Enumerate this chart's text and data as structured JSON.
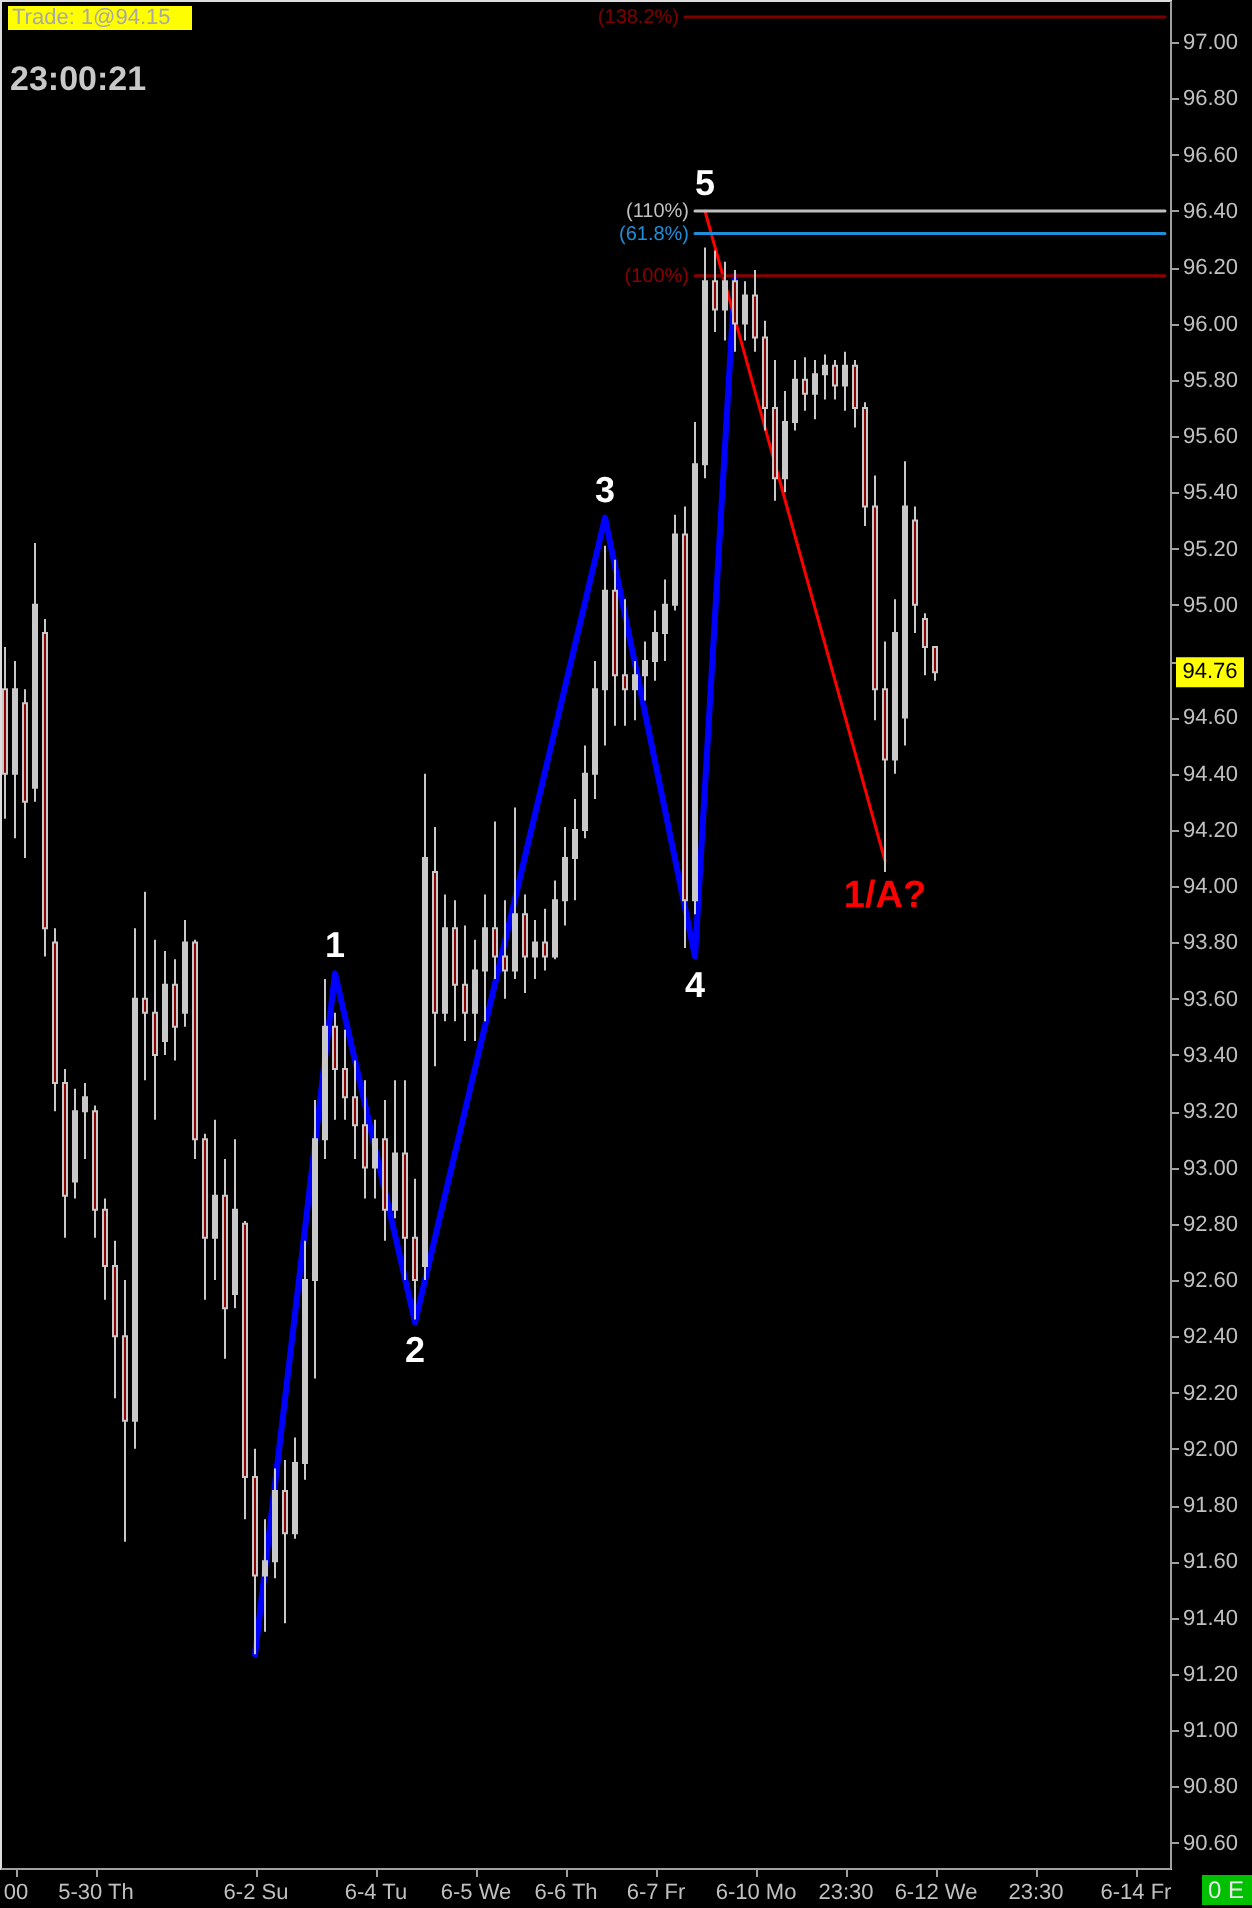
{
  "chart_data": {
    "type": "candlestick",
    "title": "Trade: 1@94.15",
    "subtitle": "23:00:21",
    "color": "#c8c8c8",
    "ylim": [
      90.51,
      97.15
    ],
    "yticks": [
      {
        "value": 90.6,
        "label": "90.60"
      },
      {
        "value": 90.8,
        "label": "90.80"
      },
      {
        "value": 91.0,
        "label": "91.00"
      },
      {
        "value": 91.2,
        "label": "91.20"
      },
      {
        "value": 91.4,
        "label": "91.40"
      },
      {
        "value": 91.6,
        "label": "91.60"
      },
      {
        "value": 91.8,
        "label": "91.80"
      },
      {
        "value": 92.0,
        "label": "92.00"
      },
      {
        "value": 92.2,
        "label": "92.20"
      },
      {
        "value": 92.4,
        "label": "92.40"
      },
      {
        "value": 92.6,
        "label": "92.60"
      },
      {
        "value": 92.8,
        "label": "92.80"
      },
      {
        "value": 93.0,
        "label": "93.00"
      },
      {
        "value": 93.2,
        "label": "93.20"
      },
      {
        "value": 93.4,
        "label": "93.40"
      },
      {
        "value": 93.6,
        "label": "93.60"
      },
      {
        "value": 93.8,
        "label": "93.80"
      },
      {
        "value": 94.0,
        "label": "94.00"
      },
      {
        "value": 94.2,
        "label": "94.20"
      },
      {
        "value": 94.4,
        "label": "94.40"
      },
      {
        "value": 94.6,
        "label": "94.60"
      },
      {
        "value": 94.8,
        "label": null
      },
      {
        "value": 95.0,
        "label": "95.00"
      },
      {
        "value": 95.2,
        "label": "95.20"
      },
      {
        "value": 95.4,
        "label": "95.40"
      },
      {
        "value": 95.6,
        "label": "95.60"
      },
      {
        "value": 95.8,
        "label": "95.80"
      },
      {
        "value": 96.0,
        "label": "96.00"
      },
      {
        "value": 96.2,
        "label": "96.20"
      },
      {
        "value": 96.4,
        "label": "96.40"
      },
      {
        "value": 96.6,
        "label": "96.60"
      },
      {
        "value": 96.8,
        "label": "96.80"
      },
      {
        "value": 97.0,
        "label": "97.00"
      }
    ],
    "categories": [
      null,
      "00",
      null,
      null,
      null,
      null,
      null,
      null,
      null,
      "5-30 Th",
      null,
      null,
      null,
      null,
      null,
      null,
      null,
      null,
      null,
      null,
      null,
      null,
      null,
      null,
      null,
      "6-2 Su",
      null,
      null,
      null,
      null,
      null,
      null,
      null,
      null,
      null,
      null,
      null,
      "6-4 Tu",
      null,
      null,
      null,
      null,
      null,
      null,
      null,
      null,
      null,
      "6-5 We",
      null,
      null,
      null,
      null,
      null,
      null,
      null,
      null,
      "6-6 Th",
      null,
      null,
      null,
      null,
      null,
      null,
      null,
      null,
      "6-7 Fr",
      null,
      null,
      null,
      null,
      null,
      null,
      null,
      null,
      null,
      "6-10 Mo",
      null,
      null,
      null,
      null,
      null,
      null,
      null,
      null,
      "23:30",
      null,
      null,
      null,
      null,
      null,
      null,
      null,
      null,
      "6-12 We",
      null,
      null,
      null,
      null,
      null,
      null,
      null,
      null,
      null,
      "23:30",
      null,
      null,
      null,
      null,
      null,
      null,
      null,
      null,
      null,
      "6-14 Fr",
      null,
      null,
      null
    ],
    "ohlc": [
      [
        94.7,
        94.85,
        94.24,
        94.4
      ],
      [
        94.4,
        94.8,
        94.17,
        94.7
      ],
      [
        94.65,
        94.7,
        94.1,
        94.3
      ],
      [
        94.35,
        95.22,
        94.3,
        95.0
      ],
      [
        94.9,
        94.95,
        93.75,
        93.85
      ],
      [
        93.8,
        93.85,
        93.2,
        93.3
      ],
      [
        93.3,
        93.35,
        92.75,
        92.9
      ],
      [
        92.95,
        93.28,
        92.89,
        93.2
      ],
      [
        93.2,
        93.3,
        93.03,
        93.25
      ],
      [
        93.2,
        93.22,
        92.75,
        92.85
      ],
      [
        92.85,
        92.89,
        92.53,
        92.65
      ],
      [
        92.65,
        92.74,
        92.18,
        92.4
      ],
      [
        92.4,
        92.6,
        91.67,
        92.1
      ],
      [
        92.1,
        93.85,
        92.0,
        93.6
      ],
      [
        93.6,
        93.98,
        93.31,
        93.55
      ],
      [
        93.55,
        93.81,
        93.17,
        93.4
      ],
      [
        93.45,
        93.77,
        93.4,
        93.65
      ],
      [
        93.65,
        93.74,
        93.38,
        93.5
      ],
      [
        93.55,
        93.88,
        93.5,
        93.8
      ],
      [
        93.8,
        93.81,
        93.03,
        93.1
      ],
      [
        93.1,
        93.12,
        92.53,
        92.75
      ],
      [
        92.75,
        93.17,
        92.6,
        92.9
      ],
      [
        92.9,
        93.03,
        92.32,
        92.5
      ],
      [
        92.55,
        93.1,
        92.5,
        92.85
      ],
      [
        92.8,
        92.81,
        91.75,
        91.9
      ],
      [
        91.9,
        92.0,
        91.27,
        91.55
      ],
      [
        91.55,
        91.75,
        91.35,
        91.6
      ],
      [
        91.6,
        91.93,
        91.54,
        91.85
      ],
      [
        91.85,
        91.96,
        91.38,
        91.7
      ],
      [
        91.7,
        92.04,
        91.68,
        91.95
      ],
      [
        91.95,
        92.74,
        91.89,
        92.6
      ],
      [
        92.6,
        93.24,
        92.25,
        93.1
      ],
      [
        93.1,
        93.67,
        93.03,
        93.5
      ],
      [
        93.5,
        93.55,
        93.17,
        93.35
      ],
      [
        93.35,
        93.49,
        93.17,
        93.25
      ],
      [
        93.25,
        93.38,
        93.03,
        93.15
      ],
      [
        93.15,
        93.31,
        92.89,
        93.0
      ],
      [
        93.0,
        93.17,
        92.89,
        93.1
      ],
      [
        93.1,
        93.24,
        92.74,
        92.85
      ],
      [
        92.85,
        93.31,
        92.82,
        93.05
      ],
      [
        93.05,
        93.31,
        92.6,
        92.75
      ],
      [
        92.75,
        92.96,
        92.46,
        92.6
      ],
      [
        92.65,
        94.4,
        92.6,
        94.1
      ],
      [
        94.05,
        94.21,
        93.36,
        93.55
      ],
      [
        93.55,
        93.97,
        93.52,
        93.85
      ],
      [
        93.85,
        93.95,
        93.52,
        93.65
      ],
      [
        93.65,
        93.86,
        93.45,
        93.55
      ],
      [
        93.55,
        93.81,
        93.45,
        93.7
      ],
      [
        93.7,
        93.97,
        93.52,
        93.85
      ],
      [
        93.85,
        94.23,
        93.67,
        93.75
      ],
      [
        93.75,
        93.95,
        93.6,
        93.7
      ],
      [
        93.7,
        94.28,
        93.67,
        93.9
      ],
      [
        93.9,
        93.97,
        93.62,
        93.75
      ],
      [
        93.75,
        93.88,
        93.67,
        93.8
      ],
      [
        93.8,
        93.92,
        93.7,
        93.75
      ],
      [
        93.75,
        94.02,
        93.74,
        93.95
      ],
      [
        93.95,
        94.21,
        93.86,
        94.1
      ],
      [
        94.1,
        94.31,
        93.95,
        94.2
      ],
      [
        94.2,
        94.5,
        94.17,
        94.4
      ],
      [
        94.4,
        94.8,
        94.31,
        94.7
      ],
      [
        94.7,
        95.21,
        94.5,
        95.05
      ],
      [
        95.05,
        95.16,
        94.57,
        94.75
      ],
      [
        94.75,
        95.02,
        94.57,
        94.7
      ],
      [
        94.7,
        94.8,
        94.59,
        94.75
      ],
      [
        94.75,
        94.87,
        94.66,
        94.8
      ],
      [
        94.8,
        94.98,
        94.73,
        94.9
      ],
      [
        94.9,
        95.09,
        94.8,
        95.0
      ],
      [
        95.0,
        95.32,
        94.98,
        95.25
      ],
      [
        95.25,
        95.35,
        93.78,
        93.95
      ],
      [
        93.95,
        95.65,
        93.9,
        95.5
      ],
      [
        95.5,
        96.27,
        95.45,
        96.15
      ],
      [
        96.15,
        96.26,
        95.97,
        96.05
      ],
      [
        96.05,
        96.22,
        95.94,
        96.15
      ],
      [
        96.15,
        96.19,
        95.9,
        96.0
      ],
      [
        96.0,
        96.15,
        95.94,
        96.1
      ],
      [
        96.1,
        96.19,
        95.9,
        95.95
      ],
      [
        95.95,
        96.01,
        95.62,
        95.7
      ],
      [
        95.7,
        95.87,
        95.37,
        95.45
      ],
      [
        95.45,
        95.76,
        95.4,
        95.65
      ],
      [
        95.65,
        95.87,
        95.62,
        95.8
      ],
      [
        95.8,
        95.88,
        95.69,
        95.75
      ],
      [
        95.75,
        95.87,
        95.66,
        95.82
      ],
      [
        95.82,
        95.89,
        95.73,
        95.85
      ],
      [
        95.85,
        95.87,
        95.73,
        95.78
      ],
      [
        95.78,
        95.9,
        95.69,
        95.85
      ],
      [
        95.85,
        95.87,
        95.63,
        95.7
      ],
      [
        95.7,
        95.72,
        95.28,
        95.35
      ],
      [
        95.35,
        95.46,
        94.59,
        94.7
      ],
      [
        94.7,
        94.87,
        94.05,
        94.45
      ],
      [
        94.45,
        95.02,
        94.4,
        94.9
      ],
      [
        94.6,
        95.51,
        94.5,
        95.35
      ],
      [
        95.3,
        95.35,
        94.9,
        95.0
      ],
      [
        94.95,
        94.97,
        94.75,
        94.85
      ],
      [
        94.85,
        94.85,
        94.73,
        94.76
      ],
      null,
      null,
      null,
      null,
      null,
      null,
      null,
      null,
      null,
      null,
      null,
      null,
      null,
      null,
      null,
      null,
      null,
      null,
      null,
      null,
      null,
      null,
      null
    ],
    "colors": [
      "#8b0000",
      "#c8c8c8",
      "#8b0000",
      "#c8c8c8",
      "#8b0000",
      "#8b0000",
      "#8b0000",
      "#c8c8c8",
      "#c8c8c8",
      "#8b0000",
      "#8b0000",
      "#8b0000",
      "#8b0000",
      "#c8c8c8",
      "#8b0000",
      "#8b0000",
      "#c8c8c8",
      "#8b0000",
      "#c8c8c8",
      "#8b0000",
      "#8b0000",
      "#c8c8c8",
      "#8b0000",
      "#c8c8c8",
      "#8b0000",
      "#8b0000",
      "#c8c8c8",
      "#c8c8c8",
      "#8b0000",
      "#c8c8c8",
      "#c8c8c8",
      "#c8c8c8",
      "#c8c8c8",
      "#8b0000",
      "#8b0000",
      "#8b0000",
      "#8b0000",
      "#c8c8c8",
      "#8b0000",
      "#c8c8c8",
      "#8b0000",
      "#8b0000",
      "#c8c8c8",
      "#8b0000",
      "#c8c8c8",
      "#8b0000",
      "#8b0000",
      "#c8c8c8",
      "#c8c8c8",
      "#8b0000",
      "#8b0000",
      "#c8c8c8",
      "#8b0000",
      "#c8c8c8",
      "#8b0000",
      "#c8c8c8",
      "#c8c8c8",
      "#c8c8c8",
      "#c8c8c8",
      "#c8c8c8",
      "#c8c8c8",
      "#8b0000",
      "#8b0000",
      "#c8c8c8",
      "#c8c8c8",
      "#c8c8c8",
      "#c8c8c8",
      "#c8c8c8",
      "#8b0000",
      "#c8c8c8",
      "#c8c8c8",
      "#8b0000",
      "#c8c8c8",
      "#8b0000",
      "#c8c8c8",
      "#8b0000",
      "#8b0000",
      "#8b0000",
      "#c8c8c8",
      "#c8c8c8",
      "#8b0000",
      "#c8c8c8",
      "#c8c8c8",
      "#8b0000",
      "#c8c8c8",
      "#8b0000",
      "#8b0000",
      "#8b0000",
      "#8b0000",
      "#c8c8c8",
      "#c8c8c8",
      "#8b0000",
      "#8b0000",
      "#8b0000",
      null,
      null,
      null,
      null,
      null,
      null,
      null,
      null,
      null,
      null,
      null,
      null,
      null,
      null,
      null,
      null,
      null,
      null,
      null,
      null,
      null,
      null,
      null
    ],
    "series": [
      {
        "type": "line",
        "color": "#0000ff",
        "values": [
          null,
          null,
          null,
          null,
          null,
          null,
          null,
          null,
          null,
          null,
          null,
          null,
          null,
          null,
          null,
          null,
          null,
          null,
          null,
          null,
          null,
          null,
          null,
          null,
          null,
          91.27,
          null,
          null,
          null,
          null,
          null,
          null,
          null,
          93.69,
          null,
          null,
          null,
          null,
          null,
          null,
          null,
          92.45,
          null,
          null,
          null,
          null,
          null,
          null,
          null,
          null,
          null,
          null,
          null,
          null,
          null,
          null,
          null,
          null,
          null,
          null,
          95.31,
          null,
          null,
          null,
          null,
          null,
          null,
          null,
          null,
          93.75,
          null,
          null,
          null,
          96.17,
          null,
          null,
          null,
          null,
          null,
          null,
          null,
          null,
          null,
          null,
          null,
          null,
          null,
          null,
          null,
          null,
          null,
          null,
          null,
          null,
          null,
          null,
          null,
          null,
          null,
          null,
          null,
          null,
          null,
          null,
          null,
          null,
          null,
          null,
          null,
          null,
          null,
          null,
          null,
          null,
          null,
          null,
          null
        ]
      },
      {
        "type": "line",
        "name": "1/A?",
        "color": "#ff0000",
        "values": [
          null,
          null,
          null,
          null,
          null,
          null,
          null,
          null,
          null,
          null,
          null,
          null,
          null,
          null,
          null,
          null,
          null,
          null,
          null,
          null,
          null,
          null,
          null,
          null,
          null,
          null,
          null,
          null,
          null,
          null,
          null,
          null,
          null,
          null,
          null,
          null,
          null,
          null,
          null,
          null,
          null,
          null,
          null,
          null,
          null,
          null,
          null,
          null,
          null,
          null,
          null,
          null,
          null,
          null,
          null,
          null,
          null,
          null,
          null,
          null,
          null,
          null,
          null,
          null,
          null,
          null,
          null,
          null,
          null,
          null,
          96.4,
          null,
          null,
          null,
          null,
          null,
          null,
          null,
          null,
          null,
          null,
          null,
          null,
          null,
          null,
          null,
          null,
          null,
          94.09,
          null,
          null,
          null,
          null,
          null,
          null,
          null,
          null,
          null,
          null,
          null,
          null,
          null,
          null,
          null,
          null,
          null,
          null,
          null,
          null,
          null,
          null,
          null,
          null,
          null,
          null,
          null,
          null
        ]
      },
      {
        "type": "line",
        "name": "(138.2%)",
        "color": "#800000",
        "values": [
          null,
          null,
          null,
          null,
          null,
          null,
          null,
          null,
          null,
          null,
          null,
          null,
          null,
          null,
          null,
          null,
          null,
          null,
          null,
          null,
          null,
          null,
          null,
          null,
          null,
          null,
          null,
          null,
          null,
          null,
          null,
          null,
          null,
          null,
          null,
          null,
          null,
          null,
          null,
          null,
          null,
          null,
          null,
          null,
          null,
          null,
          null,
          null,
          null,
          null,
          null,
          null,
          null,
          null,
          null,
          null,
          null,
          null,
          null,
          null,
          null,
          null,
          null,
          null,
          null,
          null,
          null,
          null,
          97.09,
          97.09,
          97.09,
          97.09,
          97.09,
          97.09,
          97.09,
          97.09,
          97.09,
          97.09,
          97.09,
          97.09,
          97.09,
          97.09,
          97.09,
          97.09,
          97.09,
          97.09,
          97.09,
          97.09,
          97.09,
          97.09,
          97.09,
          97.09,
          97.09,
          97.09,
          97.09,
          97.09,
          97.09,
          97.09,
          97.09,
          97.09,
          97.09,
          97.09,
          97.09,
          97.09,
          97.09,
          97.09,
          97.09,
          97.09,
          97.09,
          97.09,
          97.09,
          97.09,
          97.09,
          97.09,
          97.09,
          97.09,
          97.09
        ]
      },
      {
        "type": "line",
        "name": "(110%)",
        "color": "#c0c0c0",
        "values": [
          null,
          null,
          null,
          null,
          null,
          null,
          null,
          null,
          null,
          null,
          null,
          null,
          null,
          null,
          null,
          null,
          null,
          null,
          null,
          null,
          null,
          null,
          null,
          null,
          null,
          null,
          null,
          null,
          null,
          null,
          null,
          null,
          null,
          null,
          null,
          null,
          null,
          null,
          null,
          null,
          null,
          null,
          null,
          null,
          null,
          null,
          null,
          null,
          null,
          null,
          null,
          null,
          null,
          null,
          null,
          null,
          null,
          null,
          null,
          null,
          null,
          null,
          null,
          null,
          null,
          null,
          null,
          null,
          null,
          96.4,
          96.4,
          96.4,
          96.4,
          96.4,
          96.4,
          96.4,
          96.4,
          96.4,
          96.4,
          96.4,
          96.4,
          96.4,
          96.4,
          96.4,
          96.4,
          96.4,
          96.4,
          96.4,
          96.4,
          96.4,
          96.4,
          96.4,
          96.4,
          96.4,
          96.4,
          96.4,
          96.4,
          96.4,
          96.4,
          96.4,
          96.4,
          96.4,
          96.4,
          96.4,
          96.4,
          96.4,
          96.4,
          96.4,
          96.4,
          96.4,
          96.4,
          96.4,
          96.4,
          96.4,
          96.4,
          96.4,
          96.4
        ]
      },
      {
        "type": "line",
        "name": "(61.8%)",
        "color": "#1e8fd8",
        "values": [
          null,
          null,
          null,
          null,
          null,
          null,
          null,
          null,
          null,
          null,
          null,
          null,
          null,
          null,
          null,
          null,
          null,
          null,
          null,
          null,
          null,
          null,
          null,
          null,
          null,
          null,
          null,
          null,
          null,
          null,
          null,
          null,
          null,
          null,
          null,
          null,
          null,
          null,
          null,
          null,
          null,
          null,
          null,
          null,
          null,
          null,
          null,
          null,
          null,
          null,
          null,
          null,
          null,
          null,
          null,
          null,
          null,
          null,
          null,
          null,
          null,
          null,
          null,
          null,
          null,
          null,
          null,
          null,
          null,
          96.32,
          96.32,
          96.32,
          96.32,
          96.32,
          96.32,
          96.32,
          96.32,
          96.32,
          96.32,
          96.32,
          96.32,
          96.32,
          96.32,
          96.32,
          96.32,
          96.32,
          96.32,
          96.32,
          96.32,
          96.32,
          96.32,
          96.32,
          96.32,
          96.32,
          96.32,
          96.32,
          96.32,
          96.32,
          96.32,
          96.32,
          96.32,
          96.32,
          96.32,
          96.32,
          96.32,
          96.32,
          96.32,
          96.32,
          96.32,
          96.32,
          96.32,
          96.32,
          96.32,
          96.32,
          96.32,
          96.32,
          96.32
        ]
      },
      {
        "type": "line",
        "name": "(100%)",
        "color": "#8b0000",
        "values": [
          null,
          null,
          null,
          null,
          null,
          null,
          null,
          null,
          null,
          null,
          null,
          null,
          null,
          null,
          null,
          null,
          null,
          null,
          null,
          null,
          null,
          null,
          null,
          null,
          null,
          null,
          null,
          null,
          null,
          null,
          null,
          null,
          null,
          null,
          null,
          null,
          null,
          null,
          null,
          null,
          null,
          null,
          null,
          null,
          null,
          null,
          null,
          null,
          null,
          null,
          null,
          null,
          null,
          null,
          null,
          null,
          null,
          null,
          null,
          null,
          null,
          null,
          null,
          null,
          null,
          null,
          null,
          null,
          null,
          96.17,
          96.17,
          96.17,
          96.17,
          96.17,
          96.17,
          96.17,
          96.17,
          96.17,
          96.17,
          96.17,
          96.17,
          96.17,
          96.17,
          96.17,
          96.17,
          96.17,
          96.17,
          96.17,
          96.17,
          96.17,
          96.17,
          96.17,
          96.17,
          96.17,
          96.17,
          96.17,
          96.17,
          96.17,
          96.17,
          96.17,
          96.17,
          96.17,
          96.17,
          96.17,
          96.17,
          96.17,
          96.17,
          96.17,
          96.17,
          96.17,
          96.17,
          96.17,
          96.17,
          96.17,
          96.17,
          96.17,
          96.17
        ]
      }
    ],
    "annotations": [
      "94.76",
      "0 E",
      {
        "text": "1",
        "y": 93.69
      },
      {
        "text": "2",
        "y": 92.45
      },
      {
        "text": "3",
        "y": 95.31
      },
      {
        "text": "4",
        "y": 93.75
      },
      {
        "text": "5",
        "y": 96.4
      }
    ]
  }
}
